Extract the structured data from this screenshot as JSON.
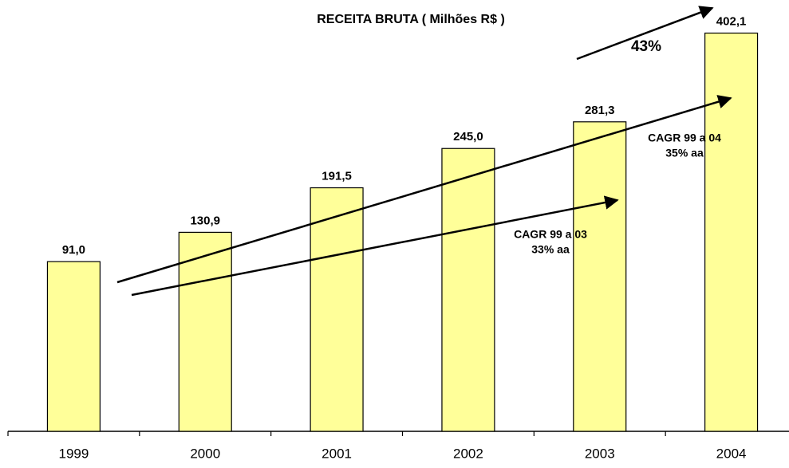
{
  "chart_data": {
    "type": "bar",
    "title": "RECEITA BRUTA ( Milhões R$ )",
    "categories": [
      "1999",
      "2000",
      "2001",
      "2002",
      "2003",
      "2004"
    ],
    "values": [
      91.0,
      130.9,
      191.5,
      245.0,
      281.3,
      402.1
    ],
    "value_labels": [
      "91,0",
      "130,9",
      "191,5",
      "245,0",
      "281,3",
      "402,1"
    ],
    "color": "#ffff99",
    "ylim": [
      -140,
      420
    ],
    "annotations": [
      "43%",
      "CAGR 99 a 04",
      "35% aa",
      "CAGR 99 a 03",
      "33% aa"
    ]
  }
}
